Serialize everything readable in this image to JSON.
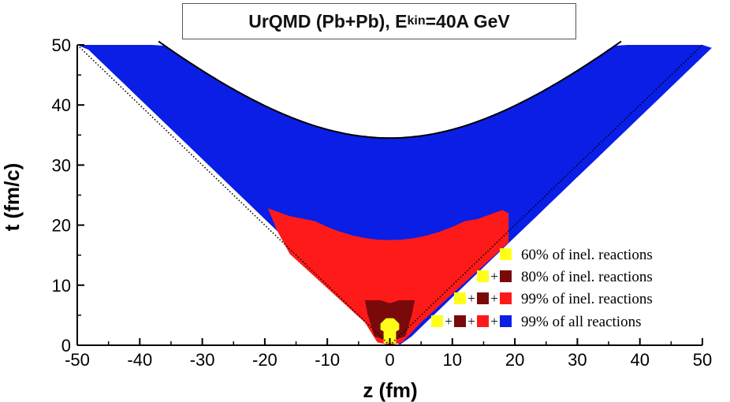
{
  "title": {
    "main": "UrQMD (Pb+Pb), E",
    "sub": "kin",
    "rest": "=40A GeV"
  },
  "chart_data": {
    "type": "heatmap",
    "title": "UrQMD (Pb+Pb), Ekin=40A GeV",
    "xlabel": "z (fm)",
    "ylabel": "t (fm/c)",
    "xlim": [
      -50,
      50
    ],
    "ylim": [
      0,
      50
    ],
    "x_ticks": [
      "-50",
      "-40",
      "-30",
      "-20",
      "-10",
      "0",
      "10",
      "20",
      "30",
      "40",
      "50"
    ],
    "y_ticks": [
      "0",
      "10",
      "20",
      "30",
      "40",
      "50"
    ],
    "light_cone": "dotted lines t = |z|",
    "hyperbola": {
      "tau_fm": 34.5,
      "equation": "t = sqrt(tau^2 + z^2)"
    },
    "regions": [
      {
        "name": "99% of all reactions",
        "color": "#0a1ee6",
        "t_max_at_z0": 34.5
      },
      {
        "name": "99% of inel. reactions",
        "color": "#ff1a1a",
        "t_max_at_z0": 17.5
      },
      {
        "name": "80% of inel. reactions",
        "color": "#7a0a0a",
        "t_max_at_z0": 7.0
      },
      {
        "name": "60% of inel. reactions",
        "color": "#ffff1a",
        "t_max_at_z0": 4.5
      }
    ],
    "legend": {
      "position": "bottom-right",
      "entries": [
        {
          "label": "60% of inel. reactions",
          "swatches": [
            "#ffff1a"
          ]
        },
        {
          "label": "80% of inel. reactions",
          "swatches": [
            "#ffff1a",
            "#7a0a0a"
          ]
        },
        {
          "label": "99% of inel. reactions",
          "swatches": [
            "#ffff1a",
            "#7a0a0a",
            "#ff1a1a"
          ]
        },
        {
          "label": "99% of all reactions",
          "swatches": [
            "#ffff1a",
            "#7a0a0a",
            "#ff1a1a",
            "#0a1ee6"
          ]
        }
      ],
      "plus_sign": "+"
    }
  }
}
